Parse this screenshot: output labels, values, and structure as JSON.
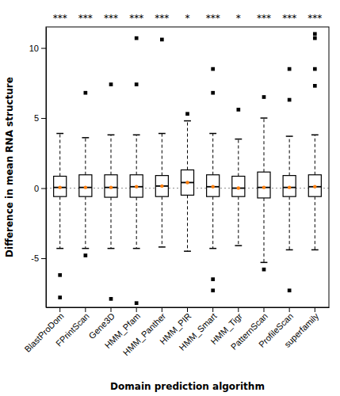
{
  "chart_data": {
    "type": "box",
    "xlabel": "Domain prediction algorithm",
    "ylabel": "Difference in mean RNA structure",
    "categories": [
      "BlastProDom",
      "FPrintScan",
      "Gene3D",
      "HMM_Pfam",
      "HMM_Panther",
      "HMM_PIR",
      "HMM_Smart",
      "HMM_Tigr",
      "PatternScan",
      "ProfileScan",
      "superfamily"
    ],
    "annotations": [
      "***",
      "***",
      "***",
      "***",
      "***",
      "*",
      "***",
      "*",
      "***",
      "***",
      "***"
    ],
    "ylim": [
      -8.5,
      11.5
    ],
    "yticks": [
      -5,
      0,
      5,
      10
    ],
    "grid": false,
    "marker": "square",
    "reference_line": 0,
    "boxes": [
      {
        "q1": -0.6,
        "median": 0.05,
        "q3": 0.85,
        "whisker_lo": -4.3,
        "whisker_hi": 3.9,
        "mean": 0.05,
        "outliers_lo": [
          -6.2,
          -7.8
        ],
        "outliers_hi": []
      },
      {
        "q1": -0.6,
        "median": 0.05,
        "q3": 0.95,
        "whisker_lo": -4.3,
        "whisker_hi": 3.6,
        "mean": 0.05,
        "outliers_lo": [
          -4.8
        ],
        "outliers_hi": [
          6.8
        ]
      },
      {
        "q1": -0.65,
        "median": 0.05,
        "q3": 0.95,
        "whisker_lo": -4.3,
        "whisker_hi": 3.8,
        "mean": 0.05,
        "outliers_lo": [
          -7.9
        ],
        "outliers_hi": [
          7.4
        ]
      },
      {
        "q1": -0.65,
        "median": 0.1,
        "q3": 0.95,
        "whisker_lo": -4.3,
        "whisker_hi": 3.8,
        "mean": 0.1,
        "outliers_lo": [
          -8.2
        ],
        "outliers_hi": [
          7.4,
          10.7
        ]
      },
      {
        "q1": -0.6,
        "median": 0.15,
        "q3": 0.9,
        "whisker_lo": -4.2,
        "whisker_hi": 3.9,
        "mean": 0.15,
        "outliers_lo": [],
        "outliers_hi": [
          10.6
        ]
      },
      {
        "q1": -0.5,
        "median": 0.4,
        "q3": 1.3,
        "whisker_lo": -4.5,
        "whisker_hi": 4.8,
        "mean": 0.4,
        "outliers_lo": [],
        "outliers_hi": [
          5.3
        ]
      },
      {
        "q1": -0.6,
        "median": 0.1,
        "q3": 0.95,
        "whisker_lo": -4.3,
        "whisker_hi": 3.9,
        "mean": 0.1,
        "outliers_lo": [
          -6.5,
          -7.3
        ],
        "outliers_hi": [
          6.8,
          8.5
        ]
      },
      {
        "q1": -0.6,
        "median": 0.0,
        "q3": 0.85,
        "whisker_lo": -4.1,
        "whisker_hi": 3.5,
        "mean": 0.0,
        "outliers_lo": [],
        "outliers_hi": [
          5.6
        ]
      },
      {
        "q1": -0.7,
        "median": 0.05,
        "q3": 1.15,
        "whisker_lo": -5.3,
        "whisker_hi": 5.0,
        "mean": 0.05,
        "outliers_lo": [
          -5.8
        ],
        "outliers_hi": [
          6.5
        ]
      },
      {
        "q1": -0.6,
        "median": 0.05,
        "q3": 0.9,
        "whisker_lo": -4.4,
        "whisker_hi": 3.7,
        "mean": 0.05,
        "outliers_lo": [
          -7.3
        ],
        "outliers_hi": [
          8.5,
          6.3
        ]
      },
      {
        "q1": -0.6,
        "median": 0.1,
        "q3": 0.95,
        "whisker_lo": -4.4,
        "whisker_hi": 3.8,
        "mean": 0.1,
        "outliers_lo": [],
        "outliers_hi": [
          7.3,
          8.5,
          10.7,
          11.0
        ]
      }
    ]
  }
}
